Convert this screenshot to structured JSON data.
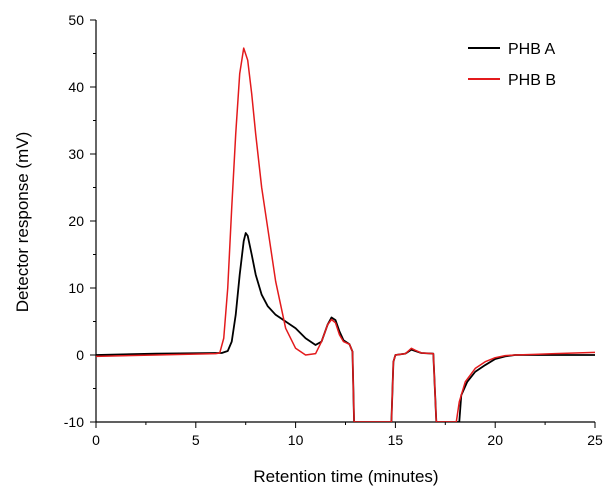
{
  "chart_data": {
    "type": "line",
    "title": "",
    "xlabel": "Retention time (minutes)",
    "ylabel": "Detector response (mV)",
    "xlim": [
      0,
      25
    ],
    "ylim": [
      -10,
      50
    ],
    "x_ticks": [
      0,
      5,
      10,
      15,
      20,
      25
    ],
    "y_ticks": [
      -10,
      0,
      10,
      20,
      30,
      40,
      50
    ],
    "x_tick_labels": [
      "0",
      "5",
      "10",
      "15",
      "20",
      "25"
    ],
    "y_tick_labels": [
      "-10",
      "0",
      "10",
      "20",
      "30",
      "40",
      "50"
    ],
    "grid": false,
    "legend_position": "top-right",
    "series": [
      {
        "name": "PHB A",
        "color": "#000000",
        "points": [
          [
            0,
            0
          ],
          [
            3,
            0.2
          ],
          [
            6,
            0.3
          ],
          [
            6.3,
            0.3
          ],
          [
            6.6,
            0.6
          ],
          [
            6.8,
            2
          ],
          [
            7.0,
            6
          ],
          [
            7.2,
            12
          ],
          [
            7.4,
            17
          ],
          [
            7.5,
            18.2
          ],
          [
            7.6,
            17.8
          ],
          [
            7.8,
            15
          ],
          [
            8.0,
            12
          ],
          [
            8.3,
            9
          ],
          [
            8.6,
            7.3
          ],
          [
            9.0,
            6
          ],
          [
            9.5,
            5
          ],
          [
            10.0,
            4
          ],
          [
            10.5,
            2.5
          ],
          [
            11.0,
            1.5
          ],
          [
            11.3,
            2.0
          ],
          [
            11.6,
            4.5
          ],
          [
            11.8,
            5.6
          ],
          [
            12.0,
            5.2
          ],
          [
            12.2,
            3.5
          ],
          [
            12.4,
            2.2
          ],
          [
            12.7,
            1.6
          ],
          [
            12.85,
            0.5
          ],
          [
            12.93,
            -10
          ],
          [
            14.8,
            -10
          ],
          [
            14.9,
            -1
          ],
          [
            15.0,
            0
          ],
          [
            15.5,
            0.2
          ],
          [
            15.8,
            0.8
          ],
          [
            16.0,
            0.6
          ],
          [
            16.3,
            0.3
          ],
          [
            16.9,
            0.2
          ],
          [
            17.05,
            -10
          ],
          [
            18.2,
            -10
          ],
          [
            18.3,
            -6
          ],
          [
            18.6,
            -4
          ],
          [
            19.0,
            -2.5
          ],
          [
            19.5,
            -1.5
          ],
          [
            20.0,
            -0.6
          ],
          [
            20.5,
            -0.2
          ],
          [
            21,
            0
          ],
          [
            22,
            0
          ],
          [
            23,
            0
          ],
          [
            24,
            0
          ],
          [
            25,
            0
          ]
        ]
      },
      {
        "name": "PHB B",
        "color": "#e31a1c",
        "points": [
          [
            0,
            -0.2
          ],
          [
            3,
            0
          ],
          [
            6,
            0.2
          ],
          [
            6.2,
            0.3
          ],
          [
            6.4,
            2.5
          ],
          [
            6.6,
            10
          ],
          [
            6.8,
            22
          ],
          [
            7.0,
            33
          ],
          [
            7.2,
            42
          ],
          [
            7.4,
            45.8
          ],
          [
            7.6,
            44
          ],
          [
            7.8,
            39
          ],
          [
            8.0,
            33
          ],
          [
            8.3,
            25
          ],
          [
            8.6,
            19
          ],
          [
            9.0,
            11
          ],
          [
            9.5,
            4
          ],
          [
            10.0,
            1
          ],
          [
            10.5,
            0
          ],
          [
            11.0,
            0.2
          ],
          [
            11.3,
            2
          ],
          [
            11.6,
            4.5
          ],
          [
            11.8,
            5.3
          ],
          [
            12.0,
            4.8
          ],
          [
            12.2,
            3.0
          ],
          [
            12.4,
            2.0
          ],
          [
            12.7,
            1.6
          ],
          [
            12.85,
            0.5
          ],
          [
            12.93,
            -10
          ],
          [
            14.8,
            -10
          ],
          [
            14.9,
            -1
          ],
          [
            15.0,
            0
          ],
          [
            15.5,
            0.2
          ],
          [
            15.8,
            1.0
          ],
          [
            16.0,
            0.7
          ],
          [
            16.3,
            0.3
          ],
          [
            16.9,
            0.2
          ],
          [
            17.05,
            -10
          ],
          [
            18.05,
            -10
          ],
          [
            18.2,
            -7
          ],
          [
            18.5,
            -4
          ],
          [
            19.0,
            -2
          ],
          [
            19.5,
            -1
          ],
          [
            20.0,
            -0.4
          ],
          [
            20.5,
            -0.1
          ],
          [
            21,
            0
          ],
          [
            22,
            0.1
          ],
          [
            23,
            0.2
          ],
          [
            24,
            0.3
          ],
          [
            25,
            0.4
          ]
        ]
      }
    ]
  }
}
